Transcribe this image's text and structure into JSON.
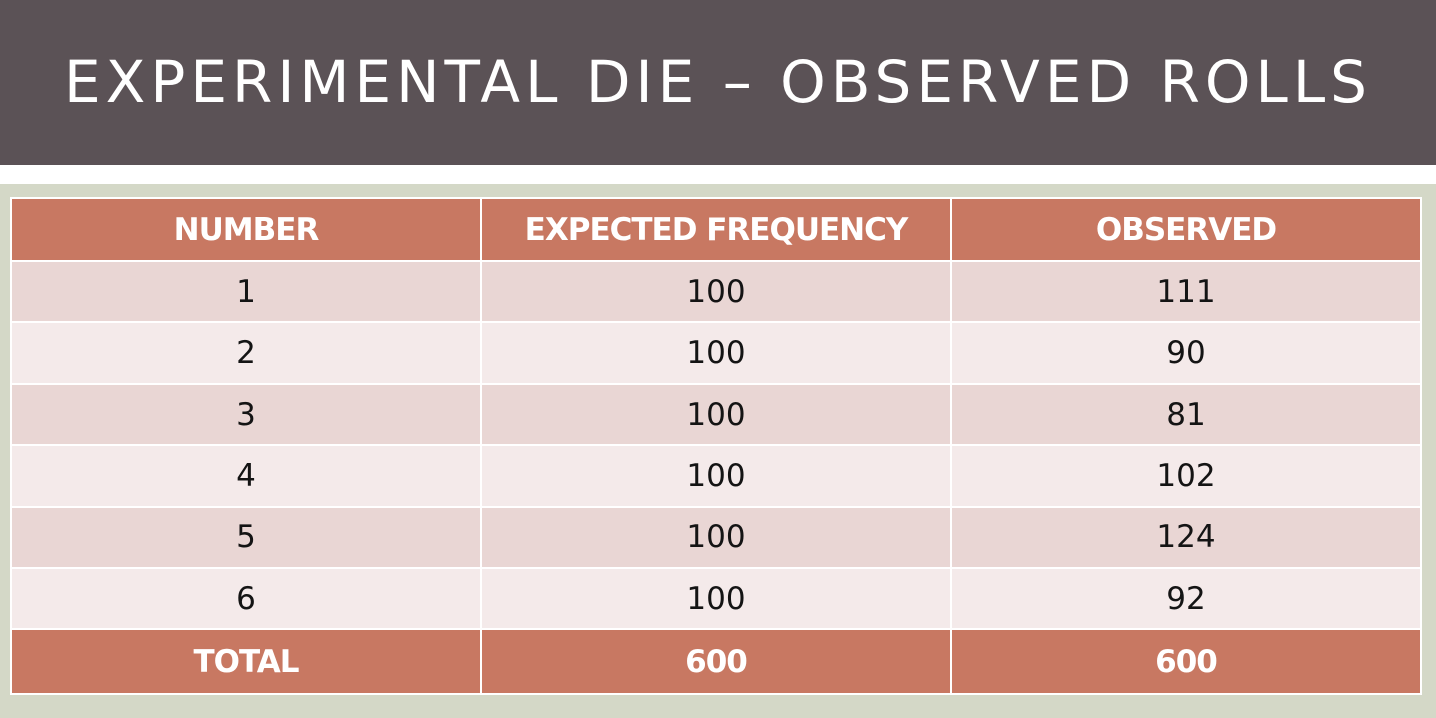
{
  "title": "EXPERIMENTAL DIE – OBSERVED ROLLS",
  "table": {
    "headers": [
      "NUMBER",
      "EXPECTED FREQUENCY",
      "OBSERVED"
    ],
    "rows": [
      [
        "1",
        "100",
        "111"
      ],
      [
        "2",
        "100",
        "90"
      ],
      [
        "3",
        "100",
        "81"
      ],
      [
        "4",
        "100",
        "102"
      ],
      [
        "5",
        "100",
        "124"
      ],
      [
        "6",
        "100",
        "92"
      ]
    ],
    "total": [
      "TOTAL",
      "600",
      "600"
    ]
  },
  "colors": {
    "title_bar": "#5b5256",
    "header_fill": "#c87862",
    "row_odd": "#e9d6d4",
    "row_even": "#f4eaea",
    "background": "#d4d8c7"
  }
}
